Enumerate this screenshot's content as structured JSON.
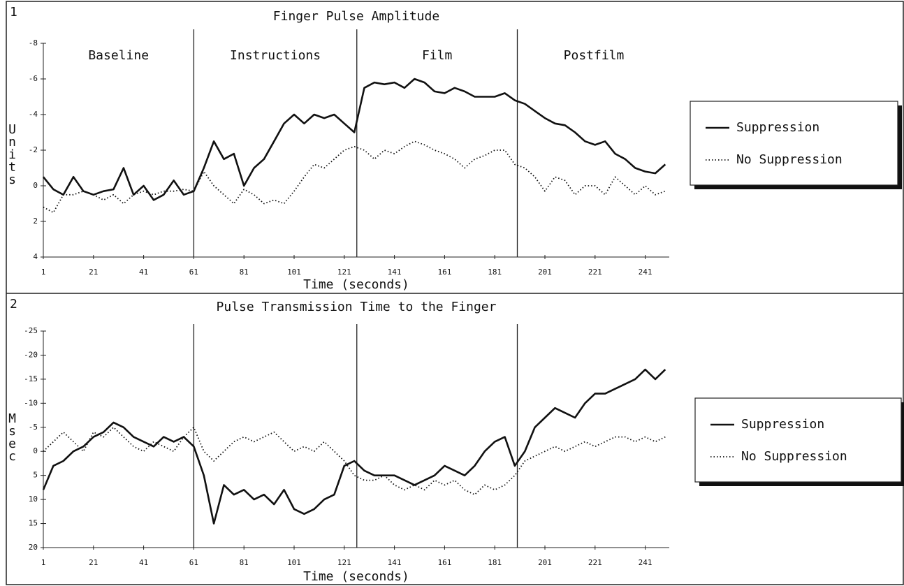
{
  "chart_data": [
    {
      "type": "line",
      "label": "1",
      "title": "Finger Pulse Amplitude",
      "ylabel": "Units",
      "xlabel": "Time (seconds)",
      "y_inverted": true,
      "xlim": [
        1,
        251
      ],
      "ylim": [
        -8,
        4
      ],
      "xticks": [
        1,
        21,
        41,
        61,
        81,
        101,
        121,
        141,
        161,
        181,
        201,
        221,
        241
      ],
      "yticks": [
        -8,
        -6,
        -4,
        -2,
        0,
        2,
        4
      ],
      "dividers": [
        61,
        126,
        190
      ],
      "phases": [
        "Baseline",
        "Instructions",
        "Film",
        "Postfilm"
      ],
      "x": [
        1,
        5,
        9,
        13,
        17,
        21,
        25,
        29,
        33,
        37,
        41,
        45,
        49,
        53,
        57,
        61,
        65,
        69,
        73,
        77,
        81,
        85,
        89,
        93,
        97,
        101,
        105,
        109,
        113,
        117,
        121,
        125,
        129,
        133,
        137,
        141,
        145,
        149,
        153,
        157,
        161,
        165,
        169,
        173,
        177,
        181,
        185,
        189,
        193,
        197,
        201,
        205,
        209,
        213,
        217,
        221,
        225,
        229,
        233,
        237,
        241,
        245,
        249
      ],
      "series": [
        {
          "name": "Suppression",
          "color": "#111111",
          "style": "solid",
          "values": [
            -0.5,
            0.2,
            0.5,
            -0.5,
            0.3,
            0.5,
            0.3,
            0.2,
            -1,
            0.5,
            0,
            0.8,
            0.5,
            -0.3,
            0.5,
            0.3,
            -1,
            -2.5,
            -1.5,
            -1.8,
            0,
            -1,
            -1.5,
            -2.5,
            -3.5,
            -4,
            -3.5,
            -4,
            -3.8,
            -4,
            -3.5,
            -3,
            -5.5,
            -5.8,
            -5.7,
            -5.8,
            -5.5,
            -6,
            -5.8,
            -5.3,
            -5.2,
            -5.5,
            -5.3,
            -5,
            -5,
            -5,
            -5.2,
            -4.8,
            -4.6,
            -4.2,
            -3.8,
            -3.5,
            -3.4,
            -3,
            -2.5,
            -2.3,
            -2.5,
            -1.8,
            -1.5,
            -1,
            -0.8,
            -0.7,
            -1.2
          ]
        },
        {
          "name": "No Suppression",
          "color": "#111111",
          "style": "dotted",
          "values": [
            1.2,
            1.5,
            0.5,
            0.5,
            0.3,
            0.5,
            0.8,
            0.5,
            1,
            0.5,
            0.3,
            0.5,
            0.3,
            0.3,
            0.2,
            0.3,
            -0.8,
            0,
            0.5,
            1,
            0.2,
            0.5,
            1,
            0.8,
            1,
            0.3,
            -0.5,
            -1.2,
            -1,
            -1.5,
            -2,
            -2.2,
            -2,
            -1.5,
            -2,
            -1.8,
            -2.2,
            -2.5,
            -2.3,
            -2,
            -1.8,
            -1.5,
            -1,
            -1.5,
            -1.7,
            -2,
            -2,
            -1.2,
            -1,
            -0.5,
            0.3,
            -0.5,
            -0.3,
            0.5,
            0,
            0,
            0.5,
            -0.5,
            0,
            0.5,
            0,
            0.5,
            0.3
          ]
        }
      ]
    },
    {
      "type": "line",
      "label": "2",
      "title": "Pulse Transmission Time to the Finger",
      "ylabel": "Msec",
      "xlabel": "Time (seconds)",
      "y_inverted": true,
      "xlim": [
        1,
        251
      ],
      "ylim": [
        -25,
        20
      ],
      "xticks": [
        1,
        21,
        41,
        61,
        81,
        101,
        121,
        141,
        161,
        181,
        201,
        221,
        241
      ],
      "yticks": [
        -25,
        -20,
        -15,
        -10,
        -5,
        0,
        5,
        10,
        15,
        20
      ],
      "dividers": [
        61,
        126,
        190
      ],
      "x": [
        1,
        5,
        9,
        13,
        17,
        21,
        25,
        29,
        33,
        37,
        41,
        45,
        49,
        53,
        57,
        61,
        65,
        69,
        73,
        77,
        81,
        85,
        89,
        93,
        97,
        101,
        105,
        109,
        113,
        117,
        121,
        125,
        129,
        133,
        137,
        141,
        145,
        149,
        153,
        157,
        161,
        165,
        169,
        173,
        177,
        181,
        185,
        189,
        193,
        197,
        201,
        205,
        209,
        213,
        217,
        221,
        225,
        229,
        233,
        237,
        241,
        245,
        249
      ],
      "series": [
        {
          "name": "Suppression",
          "color": "#111111",
          "style": "solid",
          "values": [
            8,
            3,
            2,
            0,
            -1,
            -3,
            -4,
            -6,
            -5,
            -3,
            -2,
            -1,
            -3,
            -2,
            -3,
            -1,
            5,
            15,
            7,
            9,
            8,
            10,
            9,
            11,
            8,
            12,
            13,
            12,
            10,
            9,
            3,
            2,
            4,
            5,
            5,
            5,
            6,
            7,
            6,
            5,
            3,
            4,
            5,
            3,
            0,
            -2,
            -3,
            3,
            0,
            -5,
            -7,
            -9,
            -8,
            -7,
            -10,
            -12,
            -12,
            -13,
            -14,
            -15,
            -17,
            -15,
            -17
          ]
        },
        {
          "name": "No Suppression",
          "color": "#111111",
          "style": "dotted",
          "values": [
            0,
            -2,
            -4,
            -2,
            0,
            -4,
            -3,
            -5,
            -3,
            -1,
            0,
            -2,
            -1,
            0,
            -3,
            -5,
            0,
            2,
            0,
            -2,
            -3,
            -2,
            -3,
            -4,
            -2,
            0,
            -1,
            0,
            -2,
            0,
            2,
            5,
            6,
            6,
            5,
            7,
            8,
            7,
            8,
            6,
            7,
            6,
            8,
            9,
            7,
            8,
            7,
            5,
            2,
            1,
            0,
            -1,
            0,
            -1,
            -2,
            -1,
            -2,
            -3,
            -3,
            -2,
            -3,
            -2,
            -3
          ]
        }
      ]
    }
  ]
}
